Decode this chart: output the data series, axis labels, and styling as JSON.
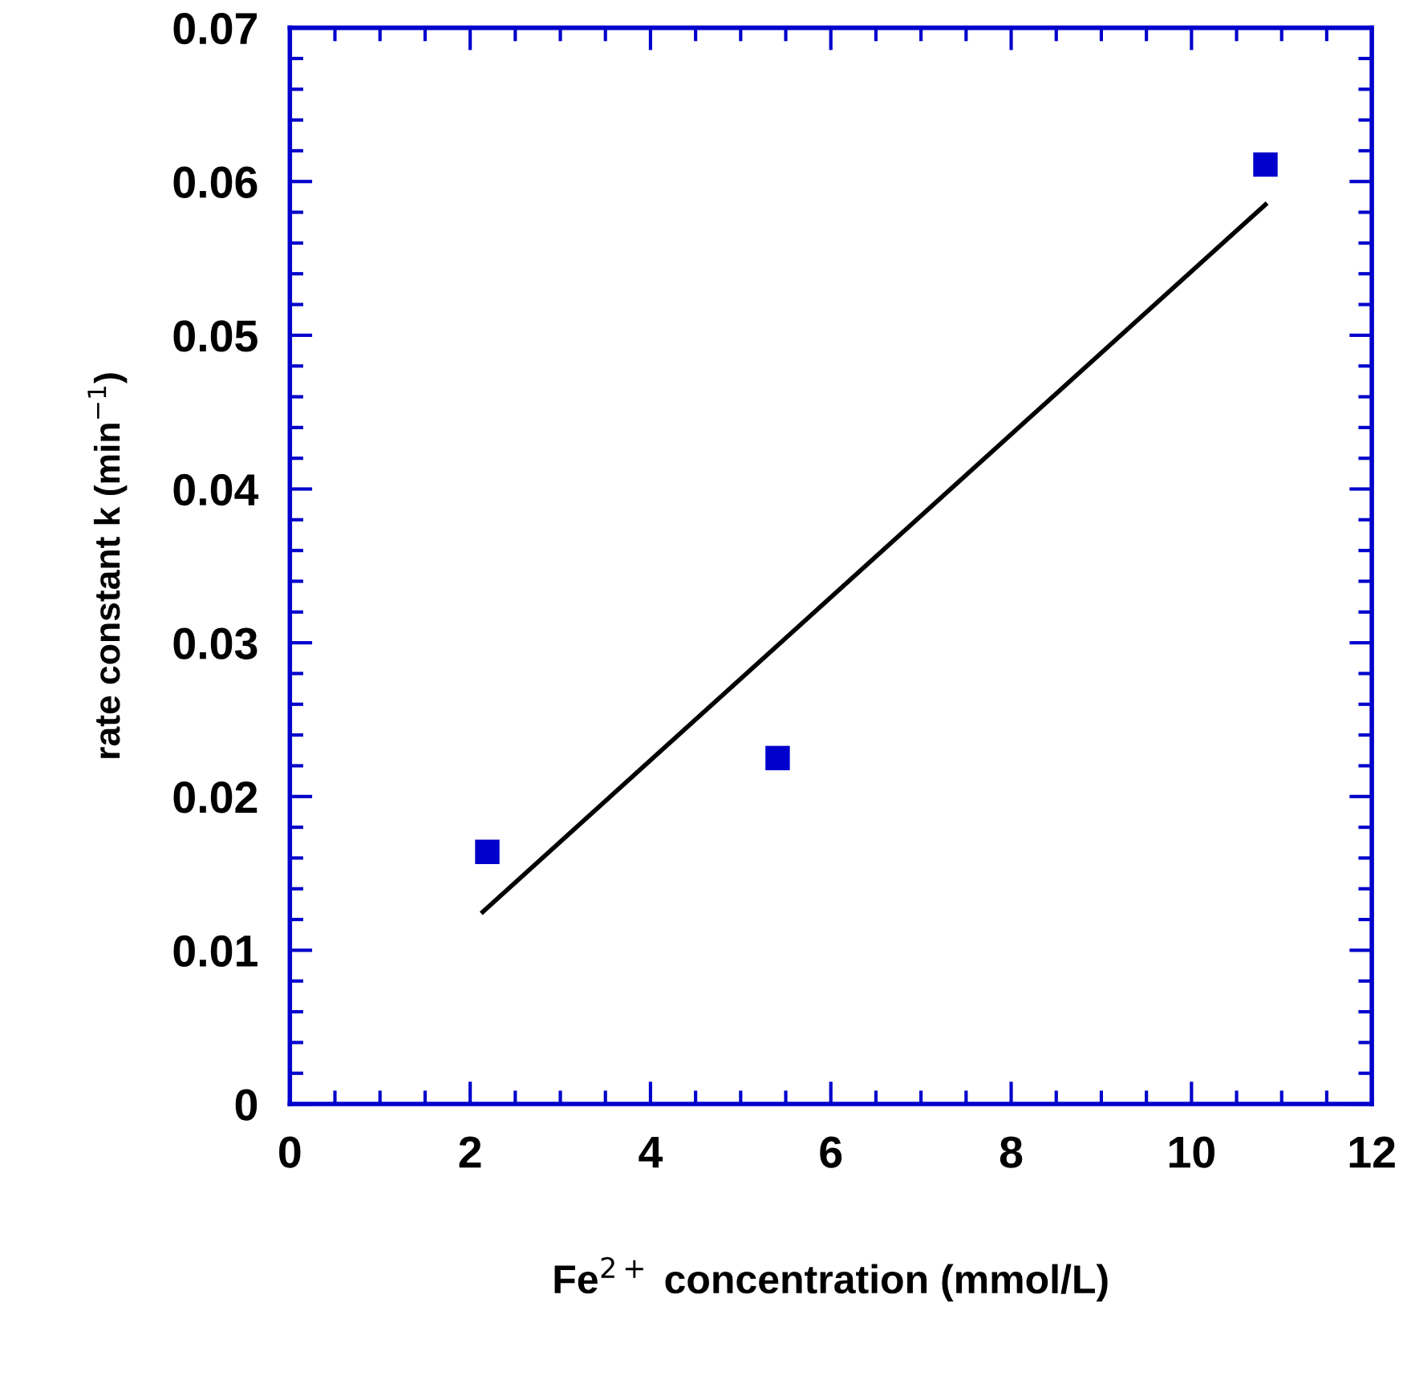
{
  "chart_data": {
    "type": "scatter",
    "xlabel": "Fe$^{2+}$ concentration (mmol/L)",
    "ylabel": "rate constant k (min$^{−1}$)",
    "xlim": [
      0,
      12
    ],
    "xticks": [
      0,
      2,
      4,
      6,
      8,
      10,
      12
    ],
    "ylim": [
      0,
      0.07
    ],
    "yticks": [
      0,
      0.01,
      0.02,
      0.03,
      0.04,
      0.05,
      0.06,
      0.07
    ],
    "grid": false,
    "legend": false,
    "marker": "square",
    "series": [
      {
        "color": "#0000cc",
        "x": [
          2.19,
          5.41,
          10.82
        ],
        "values": [
          0.0164,
          0.0225,
          0.0611
        ]
      },
      {
        "type": "line",
        "color": "#000000",
        "x": [
          2.14,
          10.82
        ],
        "values": [
          0.0125,
          0.0585
        ],
        "marker": "none",
        "line_style": "solid"
      }
    ]
  }
}
